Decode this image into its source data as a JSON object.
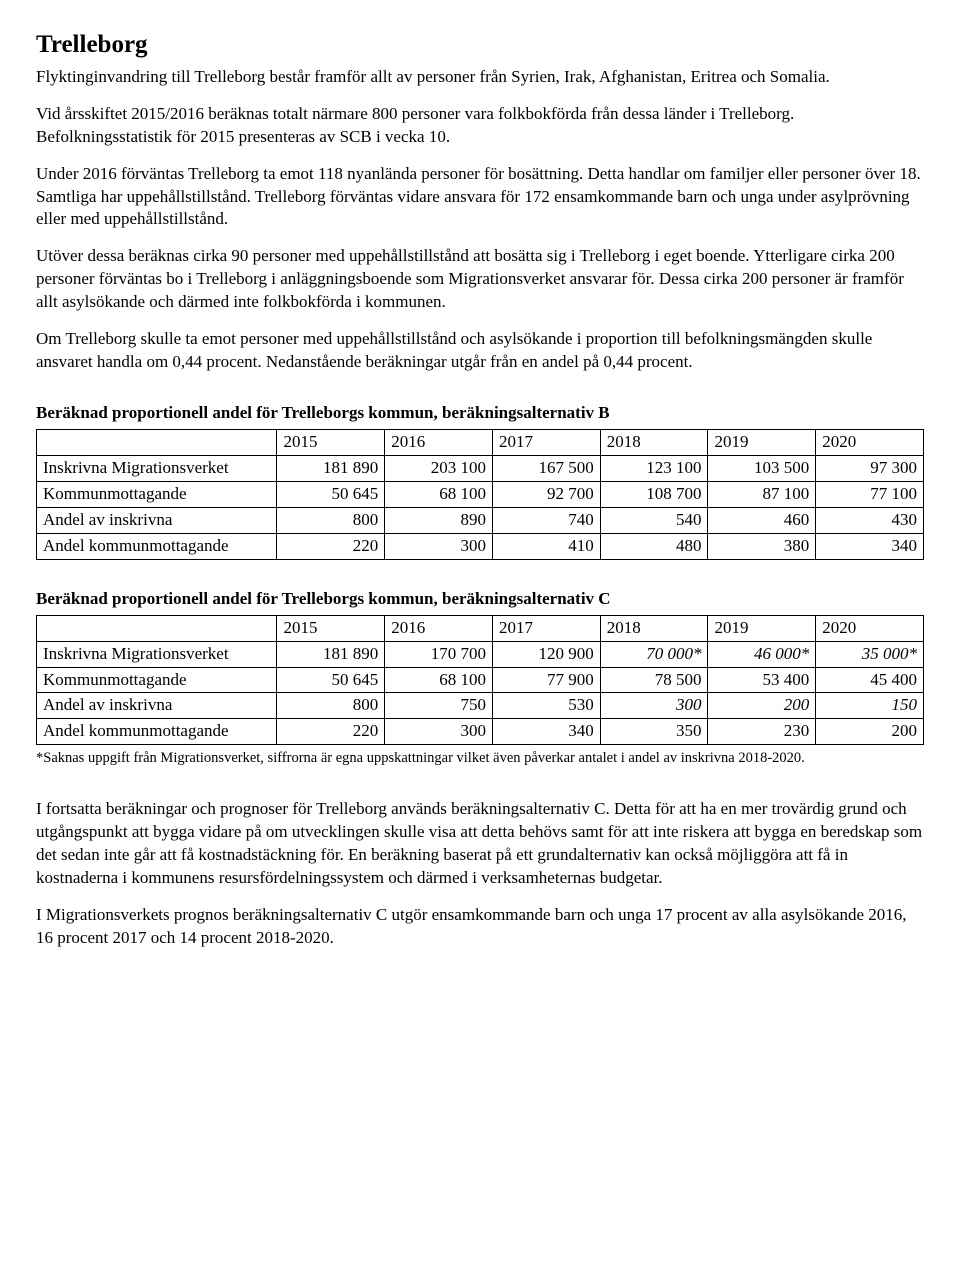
{
  "title": "Trelleborg",
  "paragraphs": {
    "p1": "Flyktinginvandring till Trelleborg består framför allt av personer från Syrien, Irak, Afghanistan, Eritrea och Somalia.",
    "p2": "Vid årsskiftet 2015/2016 beräknas totalt närmare 800 personer vara folkbokförda från dessa länder i Trelleborg. Befolkningsstatistik för 2015 presenteras av SCB i vecka 10.",
    "p3": "Under 2016 förväntas Trelleborg ta emot 118 nyanlända personer för bosättning. Detta handlar om familjer eller personer över 18. Samtliga har uppehållstillstånd. Trelleborg förväntas vidare ansvara för 172 ensamkommande barn och unga under asylprövning eller med uppehållstillstånd.",
    "p4": "Utöver dessa beräknas cirka 90 personer med uppehållstillstånd att bosätta sig i Trelleborg i eget boende. Ytterligare cirka 200 personer förväntas bo i Trelleborg i anläggningsboende som Migrationsverket ansvarar för. Dessa cirka 200 personer är framför allt asylsökande och därmed inte folkbokförda i kommunen.",
    "p5": "Om Trelleborg skulle ta emot personer med uppehållstillstånd och asylsökande i proportion till befolkningsmängden skulle ansvaret handla om 0,44 procent. Nedanstående beräkningar utgår från en andel på 0,44 procent.",
    "p6": "I fortsatta beräkningar och prognoser för Trelleborg används beräkningsalternativ C. Detta för att ha en mer trovärdig grund och utgångspunkt att bygga vidare på om utvecklingen skulle visa att detta behövs samt för att inte riskera att bygga en beredskap som det sedan inte går att få kostnadstäckning för. En beräkning baserat på ett grundalternativ kan också möjliggöra att få in kostnaderna i kommunens resursfördelningssystem och därmed i verksamheternas budgetar.",
    "p7": "I Migrationsverkets prognos beräkningsalternativ C utgör ensamkommande barn och unga 17 procent av alla asylsökande 2016, 16 procent 2017 och 14 procent 2018-2020."
  },
  "tableB": {
    "title": "Beräknad proportionell andel för Trelleborgs kommun, beräkningsalternativ B",
    "years": [
      "2015",
      "2016",
      "2017",
      "2018",
      "2019",
      "2020"
    ],
    "rows": [
      {
        "label": "Inskrivna Migrationsverket",
        "cells": [
          {
            "v": "181 890"
          },
          {
            "v": "203 100"
          },
          {
            "v": "167 500"
          },
          {
            "v": "123 100"
          },
          {
            "v": "103 500"
          },
          {
            "v": "97 300"
          }
        ]
      },
      {
        "label": "Kommunmottagande",
        "cells": [
          {
            "v": "50 645"
          },
          {
            "v": "68 100"
          },
          {
            "v": "92 700"
          },
          {
            "v": "108 700"
          },
          {
            "v": "87 100"
          },
          {
            "v": "77 100"
          }
        ]
      },
      {
        "label": "Andel av inskrivna",
        "cells": [
          {
            "v": "800"
          },
          {
            "v": "890"
          },
          {
            "v": "740"
          },
          {
            "v": "540"
          },
          {
            "v": "460"
          },
          {
            "v": "430"
          }
        ]
      },
      {
        "label": "Andel kommunmottagande",
        "cells": [
          {
            "v": "220"
          },
          {
            "v": "300"
          },
          {
            "v": "410"
          },
          {
            "v": "480"
          },
          {
            "v": "380"
          },
          {
            "v": "340"
          }
        ]
      }
    ]
  },
  "tableC": {
    "title": "Beräknad proportionell andel för Trelleborgs kommun, beräkningsalternativ C",
    "years": [
      "2015",
      "2016",
      "2017",
      "2018",
      "2019",
      "2020"
    ],
    "rows": [
      {
        "label": "Inskrivna Migrationsverket",
        "cells": [
          {
            "v": "181 890"
          },
          {
            "v": "170 700"
          },
          {
            "v": "120 900"
          },
          {
            "v": "70 000*",
            "italic": true
          },
          {
            "v": "46 000*",
            "italic": true
          },
          {
            "v": "35 000*",
            "italic": true
          }
        ]
      },
      {
        "label": "Kommunmottagande",
        "cells": [
          {
            "v": "50 645"
          },
          {
            "v": "68 100"
          },
          {
            "v": "77 900"
          },
          {
            "v": "78 500"
          },
          {
            "v": "53 400"
          },
          {
            "v": "45 400"
          }
        ]
      },
      {
        "label": "Andel av inskrivna",
        "cells": [
          {
            "v": "800"
          },
          {
            "v": "750"
          },
          {
            "v": "530"
          },
          {
            "v": "300",
            "italic": true
          },
          {
            "v": "200",
            "italic": true
          },
          {
            "v": "150",
            "italic": true
          }
        ]
      },
      {
        "label": "Andel kommunmottagande",
        "cells": [
          {
            "v": "220"
          },
          {
            "v": "300"
          },
          {
            "v": "340"
          },
          {
            "v": "350"
          },
          {
            "v": "230"
          },
          {
            "v": "200"
          }
        ]
      }
    ],
    "footnote": "*Saknas uppgift från Migrationsverket, siffrorna är egna uppskattningar vilket även påverkar antalet i andel av inskrivna 2018-2020."
  }
}
